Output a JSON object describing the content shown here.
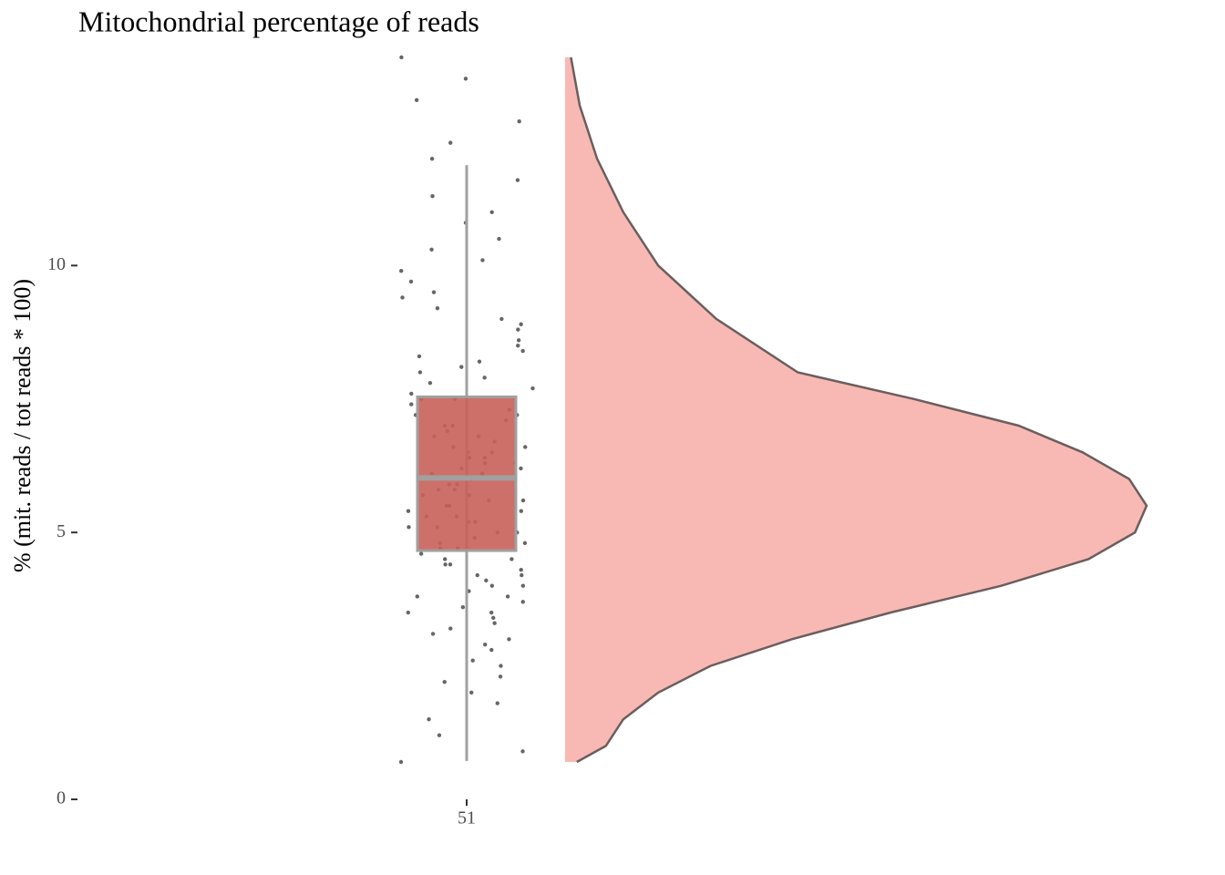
{
  "chart_data": {
    "type": "raincloud",
    "title": "Mitochondrial percentage of reads",
    "y_label": "% (mit. reads / tot reads * 100)",
    "categories": [
      "51"
    ],
    "ylim": [
      0,
      13.95
    ],
    "yticks": [
      0,
      5,
      10
    ],
    "box": {
      "whisker_low": 0.72,
      "q1": 4.66,
      "median": 6.02,
      "q3": 7.54,
      "whisker_high": 11.88,
      "fill": "#c8615a",
      "stroke": "#a0a0a0"
    },
    "density_color": "#f8b9b5",
    "density_y": [
      0.7,
      1,
      1.5,
      2,
      2.5,
      3,
      3.5,
      4,
      4.5,
      5,
      5.5,
      6,
      6.5,
      7,
      7.5,
      8,
      9,
      10,
      11,
      12,
      13,
      13.9
    ],
    "density": [
      0.02,
      0.07,
      0.1,
      0.16,
      0.25,
      0.39,
      0.56,
      0.75,
      0.9,
      0.98,
      1,
      0.97,
      0.89,
      0.78,
      0.6,
      0.4,
      0.26,
      0.16,
      0.1,
      0.055,
      0.025,
      0.01
    ],
    "points": [
      0.7,
      0.9,
      1.2,
      1.5,
      1.8,
      2.0,
      2.2,
      2.3,
      2.5,
      2.6,
      2.8,
      2.9,
      3.0,
      3.1,
      3.2,
      3.3,
      3.4,
      3.5,
      3.5,
      3.6,
      3.7,
      3.8,
      3.8,
      3.9,
      4.0,
      4.0,
      4.1,
      4.2,
      4.2,
      4.3,
      4.4,
      4.4,
      4.5,
      4.5,
      4.6,
      4.7,
      4.7,
      4.8,
      4.8,
      4.9,
      5.0,
      5.0,
      5.1,
      5.1,
      5.2,
      5.2,
      5.3,
      5.3,
      5.4,
      5.4,
      5.5,
      5.5,
      5.6,
      5.6,
      5.7,
      5.7,
      5.8,
      5.8,
      5.9,
      5.9,
      6.0,
      6.0,
      6.1,
      6.1,
      6.2,
      6.2,
      6.3,
      6.3,
      6.4,
      6.4,
      6.5,
      6.5,
      6.6,
      6.6,
      6.7,
      6.8,
      6.8,
      6.9,
      7.0,
      7.0,
      7.1,
      7.2,
      7.2,
      7.3,
      7.4,
      7.5,
      7.5,
      7.6,
      7.7,
      7.8,
      7.9,
      8.0,
      8.1,
      8.2,
      8.3,
      8.4,
      8.5,
      8.6,
      8.8,
      8.9,
      9.0,
      9.2,
      9.4,
      9.5,
      9.7,
      9.9,
      10.1,
      10.3,
      10.5,
      10.8,
      11.0,
      11.3,
      11.6,
      12.0,
      12.3,
      12.7,
      13.1,
      13.5,
      13.9
    ]
  }
}
